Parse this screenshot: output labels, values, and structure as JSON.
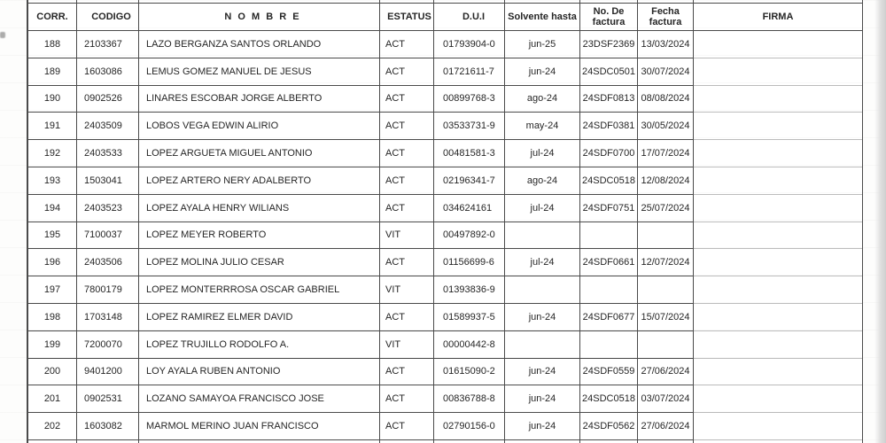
{
  "colors": {
    "border": "#4a4a4a",
    "border_light": "#bcbcbc",
    "text": "#262626"
  },
  "table": {
    "columns": [
      {
        "key": "corr",
        "label": "CORR."
      },
      {
        "key": "codigo",
        "label": "CODIGO"
      },
      {
        "key": "nombre",
        "label": "N O M B R E"
      },
      {
        "key": "estatus",
        "label": "ESTATUS"
      },
      {
        "key": "dui",
        "label": "D.U.I"
      },
      {
        "key": "solvente",
        "label": "Solvente hasta"
      },
      {
        "key": "factura_no",
        "label": "No. De factura"
      },
      {
        "key": "factura_fecha",
        "label": "Fecha factura"
      },
      {
        "key": "firma",
        "label": "FIRMA"
      }
    ],
    "rows": [
      {
        "corr": "188",
        "codigo": "2103367",
        "nombre": "LAZO BERGANZA SANTOS ORLANDO",
        "estatus": "ACT",
        "dui": "01793904-0",
        "solvente": "jun-25",
        "factura_no": "23DSF2369",
        "factura_fecha": "13/03/2024",
        "firma": ""
      },
      {
        "corr": "189",
        "codigo": "1603086",
        "nombre": "LEMUS GOMEZ MANUEL DE JESUS",
        "estatus": "ACT",
        "dui": "01721611-7",
        "solvente": "jun-24",
        "factura_no": "24SDC0501",
        "factura_fecha": "30/07/2024",
        "firma": ""
      },
      {
        "corr": "190",
        "codigo": "0902526",
        "nombre": "LINARES ESCOBAR JORGE ALBERTO",
        "estatus": "ACT",
        "dui": "00899768-3",
        "solvente": "ago-24",
        "factura_no": "24SDF0813",
        "factura_fecha": "08/08/2024",
        "firma": ""
      },
      {
        "corr": "191",
        "codigo": "2403509",
        "nombre": "LOBOS VEGA EDWIN ALIRIO",
        "estatus": "ACT",
        "dui": "03533731-9",
        "solvente": "may-24",
        "factura_no": "24SDF0381",
        "factura_fecha": "30/05/2024",
        "firma": ""
      },
      {
        "corr": "192",
        "codigo": "2403533",
        "nombre": "LOPEZ ARGUETA MIGUEL ANTONIO",
        "estatus": "ACT",
        "dui": "00481581-3",
        "solvente": "jul-24",
        "factura_no": "24SDF0700",
        "factura_fecha": "17/07/2024",
        "firma": ""
      },
      {
        "corr": "193",
        "codigo": "1503041",
        "nombre": "LOPEZ ARTERO NERY ADALBERTO",
        "estatus": "ACT",
        "dui": "02196341-7",
        "solvente": "ago-24",
        "factura_no": "24SDC0518",
        "factura_fecha": "12/08/2024",
        "firma": ""
      },
      {
        "corr": "194",
        "codigo": "2403523",
        "nombre": "LOPEZ AYALA HENRY WILIANS",
        "estatus": "ACT",
        "dui": "034624161",
        "solvente": "jul-24",
        "factura_no": "24SDF0751",
        "factura_fecha": "25/07/2024",
        "firma": ""
      },
      {
        "corr": "195",
        "codigo": "7100037",
        "nombre": "LOPEZ MEYER ROBERTO",
        "estatus": "VIT",
        "dui": "00497892-0",
        "solvente": "",
        "factura_no": "",
        "factura_fecha": "",
        "firma": ""
      },
      {
        "corr": "196",
        "codigo": "2403506",
        "nombre": "LOPEZ MOLINA JULIO CESAR",
        "estatus": "ACT",
        "dui": "01156699-6",
        "solvente": "jul-24",
        "factura_no": "24SDF0661",
        "factura_fecha": "12/07/2024",
        "firma": ""
      },
      {
        "corr": "197",
        "codigo": "7800179",
        "nombre": "LOPEZ MONTERRROSA OSCAR GABRIEL",
        "estatus": "VIT",
        "dui": "01393836-9",
        "solvente": "",
        "factura_no": "",
        "factura_fecha": "",
        "firma": ""
      },
      {
        "corr": "198",
        "codigo": "1703148",
        "nombre": "LOPEZ RAMIREZ ELMER DAVID",
        "estatus": "ACT",
        "dui": "01589937-5",
        "solvente": "jun-24",
        "factura_no": "24SDF0677",
        "factura_fecha": "15/07/2024",
        "firma": ""
      },
      {
        "corr": "199",
        "codigo": "7200070",
        "nombre": "LOPEZ TRUJILLO RODOLFO A.",
        "estatus": "VIT",
        "dui": "00000442-8",
        "solvente": "",
        "factura_no": "",
        "factura_fecha": "",
        "firma": ""
      },
      {
        "corr": "200",
        "codigo": "9401200",
        "nombre": "LOY AYALA RUBEN ANTONIO",
        "estatus": "ACT",
        "dui": "01615090-2",
        "solvente": "jun-24",
        "factura_no": "24SDF0559",
        "factura_fecha": "27/06/2024",
        "firma": ""
      },
      {
        "corr": "201",
        "codigo": "0902531",
        "nombre": "LOZANO SAMAYOA FRANCISCO JOSE",
        "estatus": "ACT",
        "dui": "00836788-8",
        "solvente": "jun-24",
        "factura_no": "24SDC0518",
        "factura_fecha": "03/07/2024",
        "firma": ""
      },
      {
        "corr": "202",
        "codigo": "1603082",
        "nombre": "MARMOL MERINO JUAN FRANCISCO",
        "estatus": "ACT",
        "dui": "02790156-0",
        "solvente": "jun-24",
        "factura_no": "24SDF0562",
        "factura_fecha": "27/06/2024",
        "firma": ""
      }
    ]
  }
}
